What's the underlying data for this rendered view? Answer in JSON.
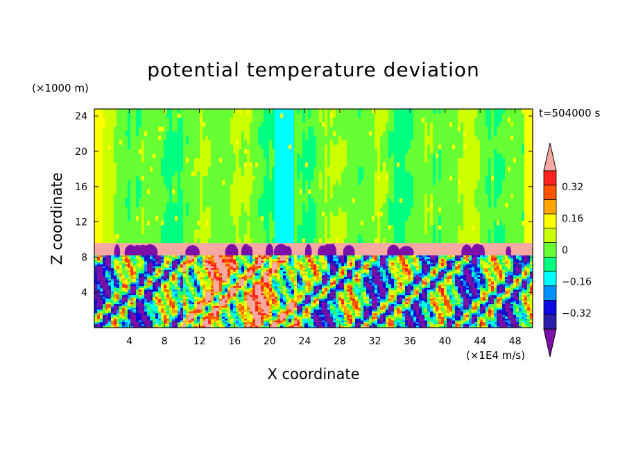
{
  "chart_data": {
    "type": "heatmap",
    "title": "potential temperature deviation",
    "xlabel": "X coordinate",
    "ylabel": "Z coordinate",
    "x_unit": "(×1E4 m/s)",
    "y_unit": "(×1000 m)",
    "time_label": "t=504000 s",
    "xlim": [
      0,
      50
    ],
    "ylim": [
      0,
      24.8
    ],
    "xticks": [
      4,
      8,
      12,
      16,
      20,
      24,
      28,
      32,
      36,
      40,
      44,
      48
    ],
    "yticks": [
      4,
      8,
      12,
      16,
      20,
      24
    ],
    "colorbar": {
      "levels": [
        -0.48,
        -0.4,
        -0.32,
        -0.24,
        -0.16,
        -0.08,
        0,
        0.08,
        0.16,
        0.24,
        0.32,
        0.4,
        0.48
      ],
      "tick_labels": [
        {
          "value": 0.32,
          "label": "0.32"
        },
        {
          "value": 0.16,
          "label": "0.16"
        },
        {
          "value": 0,
          "label": "0"
        },
        {
          "value": -0.16,
          "label": "−0.16"
        },
        {
          "value": -0.32,
          "label": "−0.32"
        }
      ],
      "colors": [
        "#7b0fa8",
        "#2a1fa8",
        "#0a0ae0",
        "#0090ff",
        "#00ffff",
        "#00ff80",
        "#66ff33",
        "#ccff00",
        "#ffff00",
        "#ffa500",
        "#ff5500",
        "#ff2020",
        "#f5a9a0"
      ],
      "extends": "both"
    },
    "regions": [
      {
        "layer": "upper",
        "z_range": [
          9.6,
          24.8
        ],
        "dominant_values": [
          0.0,
          0.04
        ],
        "description_colors": [
          "#00ff80",
          "#66ff33"
        ]
      },
      {
        "layer": "warm_band",
        "z_range": [
          8.2,
          9.6
        ],
        "dominant_values": [
          0.48
        ]
      },
      {
        "layer": "lower",
        "z_range": [
          0,
          8.2
        ],
        "value_range": [
          -0.48,
          0.48
        ]
      }
    ]
  }
}
